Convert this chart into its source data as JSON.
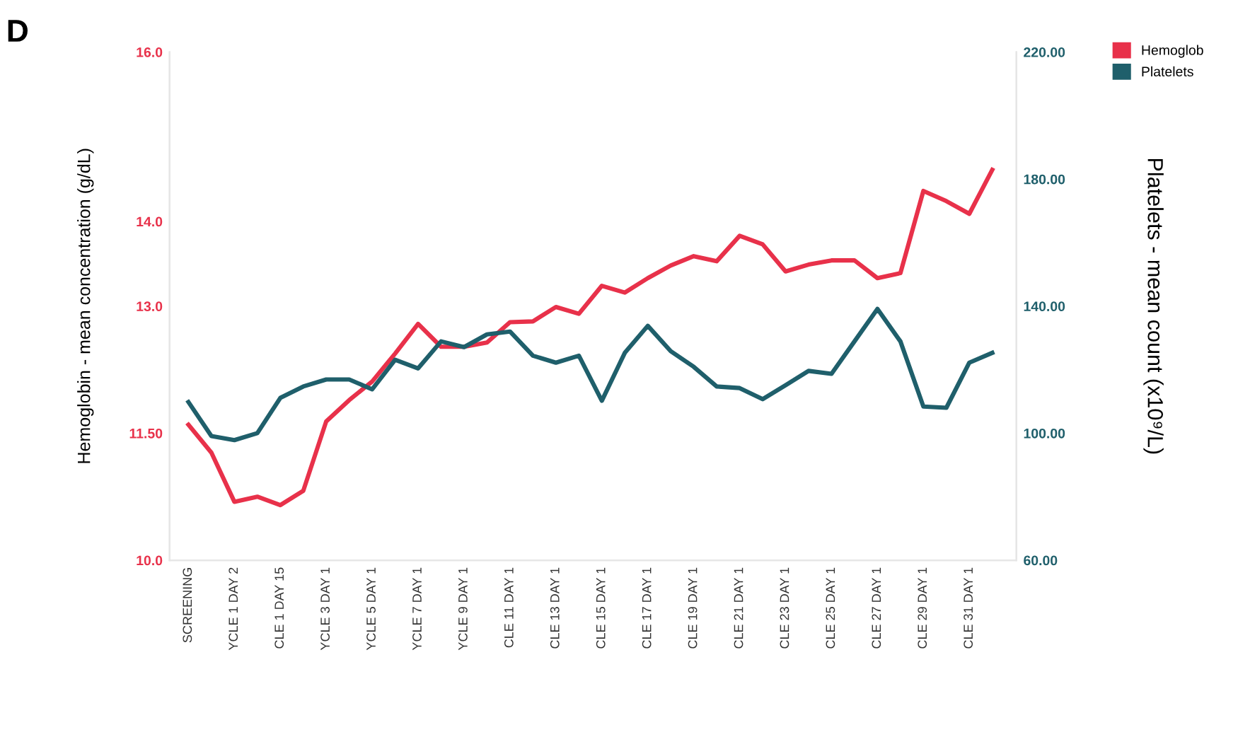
{
  "chart_data": {
    "type": "line",
    "categories": [
      "SCREENING",
      null,
      "YCLE 1 DAY 2",
      null,
      "CLE 1 DAY 15",
      null,
      "YCLE 3 DAY 1",
      null,
      "YCLE 5 DAY 1",
      null,
      "YCLE 7 DAY 1",
      null,
      "YCLE 9 DAY 1",
      null,
      "CLE 11 DAY 1",
      null,
      "CLE 13 DAY 1",
      null,
      "CLE 15 DAY 1",
      null,
      "CLE 17 DAY 1",
      null,
      "CLE 19 DAY 1",
      null,
      "CLE 21 DAY 1",
      null,
      "CLE 23 DAY 1",
      null,
      "CLE 25 DAY 1",
      null,
      "CLE 27 DAY 1",
      null,
      "CLE 29 DAY 1",
      null,
      "CLE 31 DAY 1",
      null
    ],
    "series": [
      {
        "name": "Hemoglob",
        "color": "#e8314a",
        "values": [
          11.6,
          11.27,
          10.69,
          10.75,
          10.65,
          10.82,
          11.64,
          11.89,
          12.11,
          12.44,
          12.79,
          12.52,
          12.52,
          12.57,
          12.81,
          12.82,
          12.99,
          12.91,
          13.24,
          13.16,
          13.33,
          13.48,
          13.59,
          13.53,
          13.83,
          13.73,
          13.41,
          13.49,
          13.54,
          13.54,
          13.33,
          13.39,
          14.36,
          14.24,
          14.09,
          14.61
        ]
      },
      {
        "name": "Platelets",
        "color": "#1f5f6b",
        "axis": "y2",
        "values": [
          109.8,
          99.1,
          97.8,
          100.0,
          111.1,
          114.7,
          116.9,
          116.9,
          113.8,
          123.1,
          120.4,
          128.9,
          127.1,
          131.1,
          132.0,
          124.4,
          122.2,
          124.4,
          110.2,
          125.3,
          133.8,
          125.8,
          120.9,
          114.7,
          114.2,
          110.7,
          115.1,
          119.6,
          118.7,
          128.9,
          139.1,
          128.9,
          108.4,
          108.0,
          122.2,
          125.3
        ]
      }
    ],
    "ylabel": "Hemoglobin - mean concentration (g/dL)",
    "y2label": "Platelets - mean count (x10⁹/L)",
    "ylim": [
      10,
      16
    ],
    "yticks": [
      {
        "value": 10,
        "label": "10.0"
      },
      {
        "value": 11.5,
        "label": "11.50"
      },
      {
        "value": 13,
        "label": "13.0"
      },
      {
        "value": 14,
        "label": "14.0"
      },
      {
        "value": 16,
        "label": "16.0"
      }
    ],
    "y2lim": [
      60,
      220
    ],
    "y2ticks": [
      {
        "value": 60,
        "label": "60.00"
      },
      {
        "value": 100,
        "label": "100.00"
      },
      {
        "value": 140,
        "label": "140.00"
      },
      {
        "value": 180,
        "label": "180.00"
      },
      {
        "value": 220,
        "label": "220.00"
      }
    ],
    "annotations": [
      "D"
    ],
    "legend": "top right",
    "grid": false,
    "marker": "none",
    "line_style": "solid"
  }
}
